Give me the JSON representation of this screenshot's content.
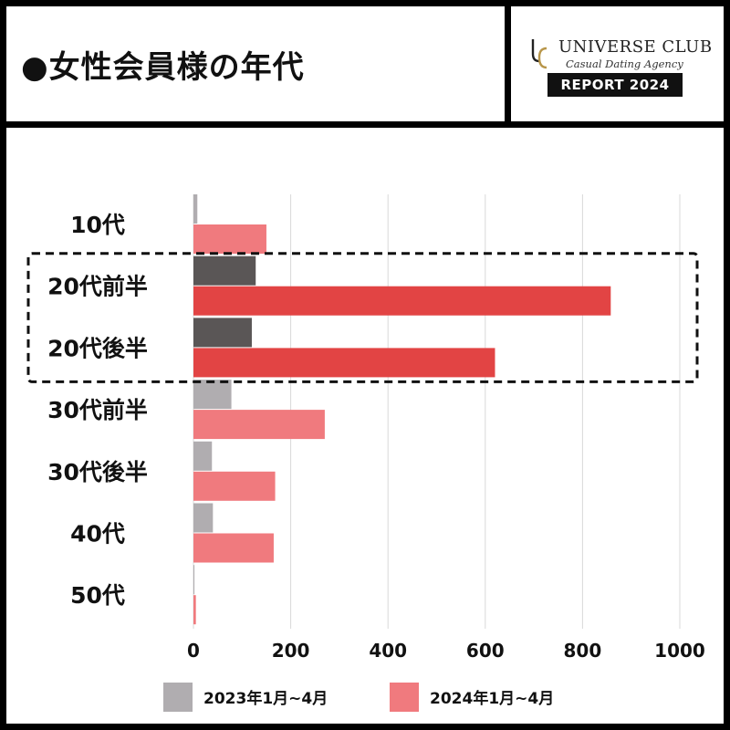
{
  "header": {
    "title": "●女性会員様の年代",
    "brand_name": "UNIVERSE CLUB",
    "brand_sub": "Casual Dating Agency",
    "report_label": "REPORT 2024"
  },
  "colors": {
    "series_2023": "#b0adb0",
    "series_2024": "#f07a7e",
    "highlight_2023": "#5a5656",
    "highlight_2024": "#e24444",
    "grid": "#d9d9d9",
    "logo_gold": "#b8964a"
  },
  "icons": {
    "logo": "uc-monogram-icon"
  },
  "chart_data": {
    "type": "bar",
    "orientation": "horizontal",
    "categories": [
      "10代",
      "20代前半",
      "20代後半",
      "30代前半",
      "30代後半",
      "40代",
      "50代"
    ],
    "series": [
      {
        "name": "2023年1月~4月",
        "values": [
          8,
          128,
          120,
          78,
          38,
          40,
          2
        ]
      },
      {
        "name": "2024年1月~4月",
        "values": [
          150,
          858,
          620,
          270,
          168,
          165,
          5
        ]
      }
    ],
    "highlighted_categories": [
      "20代前半",
      "20代後半"
    ],
    "xlim": [
      0,
      1000
    ],
    "xticks": [
      0,
      200,
      400,
      600,
      800,
      1000
    ],
    "grid": true,
    "legend_position": "bottom"
  }
}
